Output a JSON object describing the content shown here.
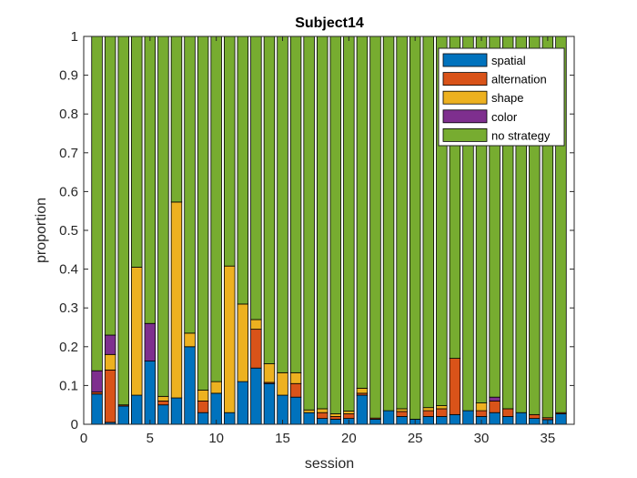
{
  "chart_data": {
    "type": "bar",
    "stacked": true,
    "title": "Subject14",
    "xlabel": "session",
    "ylabel": "proportion",
    "xlim": [
      0,
      37
    ],
    "ylim": [
      0,
      1
    ],
    "xticks": [
      0,
      5,
      10,
      15,
      20,
      25,
      30,
      35
    ],
    "yticks": [
      0,
      0.1,
      0.2,
      0.3,
      0.4,
      0.5,
      0.6,
      0.7,
      0.8,
      0.9,
      1
    ],
    "grid": false,
    "legend_position": "top-right",
    "categories": [
      1,
      2,
      3,
      4,
      5,
      6,
      7,
      8,
      9,
      10,
      11,
      12,
      13,
      14,
      15,
      16,
      17,
      18,
      19,
      20,
      21,
      22,
      23,
      24,
      25,
      26,
      27,
      28,
      29,
      30,
      31,
      32,
      33,
      34,
      35,
      36
    ],
    "series": [
      {
        "name": "spatial",
        "color": "#0072BD",
        "values": [
          0.078,
          0.005,
          0.047,
          0.075,
          0.163,
          0.05,
          0.068,
          0.2,
          0.03,
          0.08,
          0.03,
          0.11,
          0.145,
          0.105,
          0.075,
          0.07,
          0.03,
          0.015,
          0.013,
          0.015,
          0.075,
          0.013,
          0.035,
          0.02,
          0.013,
          0.02,
          0.02,
          0.025,
          0.035,
          0.02,
          0.03,
          0.02,
          0.03,
          0.015,
          0.012,
          0.027
        ]
      },
      {
        "name": "alternation",
        "color": "#D95319",
        "values": [
          0.005,
          0.135,
          0.003,
          0,
          0,
          0.01,
          0,
          0,
          0.03,
          0,
          0,
          0,
          0.1,
          0.003,
          0,
          0.035,
          0,
          0.015,
          0.007,
          0.012,
          0.005,
          0.003,
          0,
          0.013,
          0,
          0.015,
          0.02,
          0.145,
          0,
          0.015,
          0.03,
          0.02,
          0,
          0.01,
          0.005,
          0.003
        ]
      },
      {
        "name": "shape",
        "color": "#EDB120",
        "values": [
          0,
          0.04,
          0,
          0.33,
          0,
          0.012,
          0.505,
          0.035,
          0.028,
          0.03,
          0.378,
          0.2,
          0.025,
          0.048,
          0.058,
          0.028,
          0.007,
          0.01,
          0.007,
          0.007,
          0.013,
          0,
          0,
          0.007,
          0,
          0.008,
          0.008,
          0,
          0,
          0.02,
          0,
          0,
          0,
          0,
          0,
          0
        ]
      },
      {
        "name": "color",
        "color": "#7E2F8E",
        "values": [
          0.055,
          0.05,
          0,
          0,
          0.097,
          0,
          0,
          0,
          0,
          0,
          0,
          0,
          0,
          0,
          0,
          0,
          0,
          0,
          0,
          0,
          0,
          0,
          0,
          0,
          0,
          0,
          0,
          0,
          0,
          0,
          0.01,
          0,
          0,
          0,
          0,
          0
        ]
      },
      {
        "name": "no strategy",
        "color": "#77AC30",
        "values": [
          0.862,
          0.77,
          0.95,
          0.595,
          0.74,
          0.928,
          0.427,
          0.765,
          0.912,
          0.89,
          0.592,
          0.69,
          0.73,
          0.844,
          0.867,
          0.867,
          0.963,
          0.96,
          0.973,
          0.966,
          0.907,
          0.984,
          0.965,
          0.96,
          0.987,
          0.957,
          0.952,
          0.83,
          0.965,
          0.945,
          0.93,
          0.96,
          0.97,
          0.975,
          0.983,
          0.97
        ]
      }
    ]
  }
}
